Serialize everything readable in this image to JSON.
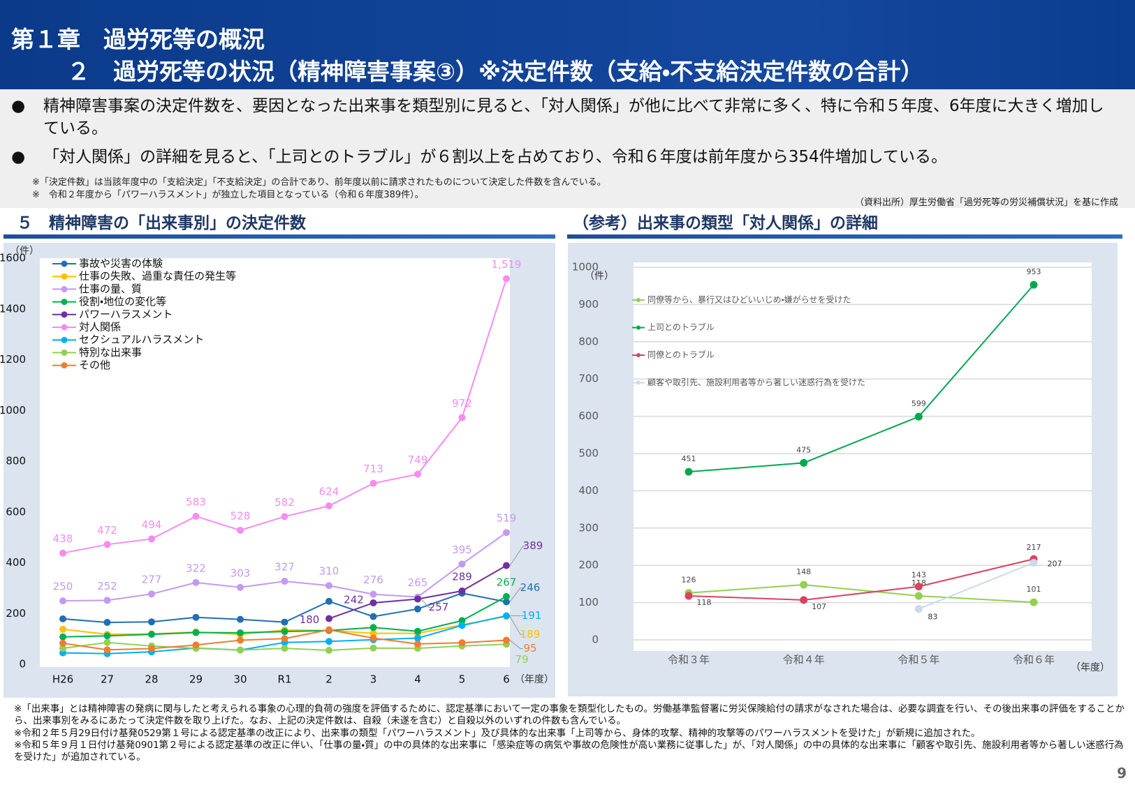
{
  "header": {
    "title_line1": "第１章　過労死等の概況",
    "title_line2": "２　過労死等の状況（精神障害事案③）※決定件数（支給・不支給決定件数の合計）"
  },
  "bullets": [
    "精神障害事案の決定件数を、要因となった出来事を類型別に見ると、「対人関係」が他に比べて非常に多く、特に令和５年度、6年度に大きく増加している。",
    "「対人関係」の詳細を見ると、「上司とのトラブル」が６割以上を占めており、令和６年度は前年度から354件増加している。"
  ],
  "notes": [
    "※「決定件数」は当該年度中の「支給決定」「不支給決定」の合計であり、前年度以前に請求されたものについて決定した件数を含んでいる。",
    "※　令和２年度から「パワーハラスメント」が独立した項目となっている（令和６年度389件）。"
  ],
  "source": "（資料出所）厚生労働省「過労死等の労災補償状況」を基に作成",
  "chart_data": [
    {
      "type": "line",
      "title": "５　精神障害の「出来事別」の決定件数",
      "y_unit": "（件）",
      "x_unit": "（年度）",
      "categories": [
        "H26",
        "27",
        "28",
        "29",
        "30",
        "R1",
        "2",
        "3",
        "4",
        "5",
        "6"
      ],
      "ylim": [
        0,
        1600
      ],
      "yticks": [
        0,
        200,
        400,
        600,
        800,
        1000,
        1200,
        1400,
        1600
      ],
      "grid": false,
      "legend": "top-left",
      "series": [
        {
          "name": "事故や災害の体験",
          "color": "#1f6fb4",
          "values": [
            179,
            165,
            167,
            185,
            177,
            166,
            248,
            188,
            218,
            280,
            246
          ],
          "value_labels": [
            null,
            null,
            null,
            null,
            null,
            null,
            null,
            null,
            null,
            null,
            "246"
          ]
        },
        {
          "name": "仕事の失敗、過重な責任の発生等",
          "color": "#ffc000",
          "values": [
            138,
            118,
            120,
            127,
            118,
            135,
            133,
            122,
            122,
            155,
            189
          ],
          "value_labels": [
            null,
            null,
            null,
            null,
            null,
            null,
            null,
            null,
            null,
            null,
            "189"
          ]
        },
        {
          "name": "仕事の量、質",
          "color": "#c39af0",
          "values": [
            250,
            252,
            277,
            322,
            303,
            327,
            310,
            276,
            265,
            395,
            519
          ],
          "value_labels": [
            "250",
            "252",
            "277",
            "322",
            "303",
            "327",
            "310",
            "276",
            "265",
            "395",
            "519"
          ]
        },
        {
          "name": "役割・地位の変化等",
          "color": "#00b050",
          "values": [
            108,
            112,
            118,
            125,
            124,
            129,
            133,
            145,
            130,
            172,
            267
          ],
          "value_labels": [
            null,
            null,
            null,
            null,
            null,
            null,
            null,
            null,
            null,
            null,
            "267"
          ]
        },
        {
          "name": "パワーハラスメント",
          "color": "#7030a0",
          "values": [
            null,
            null,
            null,
            null,
            null,
            null,
            180,
            242,
            257,
            289,
            389
          ],
          "value_labels": [
            null,
            null,
            null,
            null,
            null,
            null,
            "180",
            "242",
            "257",
            "289",
            "389"
          ]
        },
        {
          "name": "対人関係",
          "color": "#f58cf0",
          "values": [
            438,
            472,
            494,
            583,
            528,
            582,
            624,
            713,
            749,
            972,
            1519
          ],
          "value_labels": [
            "438",
            "472",
            "494",
            "583",
            "528",
            "582",
            "624",
            "713",
            "749",
            "972",
            "1,519"
          ]
        },
        {
          "name": "セクシュアルハラスメント",
          "color": "#00b0f0",
          "values": [
            45,
            42,
            49,
            64,
            56,
            86,
            90,
            97,
            103,
            153,
            191
          ],
          "value_labels": [
            null,
            null,
            null,
            null,
            null,
            null,
            null,
            null,
            null,
            null,
            "191"
          ]
        },
        {
          "name": "特別な出来事",
          "color": "#92d050",
          "values": [
            63,
            86,
            72,
            63,
            56,
            63,
            55,
            64,
            63,
            72,
            79
          ],
          "value_labels": [
            null,
            null,
            null,
            null,
            null,
            null,
            null,
            null,
            null,
            null,
            "79"
          ]
        },
        {
          "name": "その他",
          "color": "#ed7d31",
          "values": [
            83,
            57,
            62,
            76,
            95,
            101,
            136,
            103,
            80,
            85,
            95
          ],
          "value_labels": [
            null,
            null,
            null,
            null,
            null,
            null,
            null,
            null,
            null,
            null,
            "95"
          ]
        }
      ]
    },
    {
      "type": "line",
      "title": "（参考）出来事の類型「対人関係」の詳細",
      "y_unit": "（件）",
      "x_unit": "（年度）",
      "categories": [
        "令和３年",
        "令和４年",
        "令和５年",
        "令和６年"
      ],
      "ylim": [
        0,
        1000
      ],
      "yticks": [
        0,
        100,
        200,
        300,
        400,
        500,
        600,
        700,
        800,
        900,
        1000
      ],
      "grid": true,
      "legend": "top-left",
      "series": [
        {
          "name": "同僚等から、暴行又はひどいいじめ・嫌がらせを受けた",
          "color": "#92d050",
          "values": [
            126,
            148,
            118,
            101
          ],
          "value_labels": [
            "126",
            "148",
            "118",
            "101"
          ]
        },
        {
          "name": "上司とのトラブル",
          "color": "#00a94f",
          "values": [
            451,
            475,
            599,
            953
          ],
          "value_labels": [
            "451",
            "475",
            "599",
            "953"
          ]
        },
        {
          "name": "同僚とのトラブル",
          "color": "#d9435e",
          "values": [
            118,
            107,
            143,
            217
          ],
          "value_labels": [
            "118",
            "107",
            "143",
            "217"
          ]
        },
        {
          "name": "顧客や取引先、施設利用者等から著しい迷惑行為を受けた",
          "color": "#c9dbe8",
          "values": [
            null,
            null,
            83,
            207
          ],
          "value_labels": [
            null,
            null,
            "83",
            "207"
          ]
        }
      ]
    }
  ],
  "footnotes": [
    "※「出来事」とは精神障害の発病に関与したと考えられる事象の心理的負荷の強度を評価するために、認定基準において一定の事象を類型化したもの。労働基準監督署に労災保険給付の請求がなされた場合は、必要な調査を行い、その後出来事の評価をすることから、出来事別をみるにあたって決定件数を取り上げた。なお、上記の決定件数は、自殺（未遂を含む）と自殺以外のいずれの件数も含んでいる。",
    "※令和２年５月29日付け基発0529第１号による認定基準の改正により、出来事の類型「パワーハラスメント」及び具体的な出来事「上司等から、身体的攻撃、精神的攻撃等のパワーハラスメントを受けた」が新規に追加された。",
    "※令和５年９月１日付け基発0901第２号による認定基準の改正に伴い、「仕事の量・質」の中の具体的な出来事に「感染症等の病気や事故の危険性が高い業務に従事した」が、「対人関係」の中の具体的な出来事に「顧客や取引先、施設利用者等から著しい迷惑行為を受けた」が追加されている。"
  ],
  "page_number": "9"
}
